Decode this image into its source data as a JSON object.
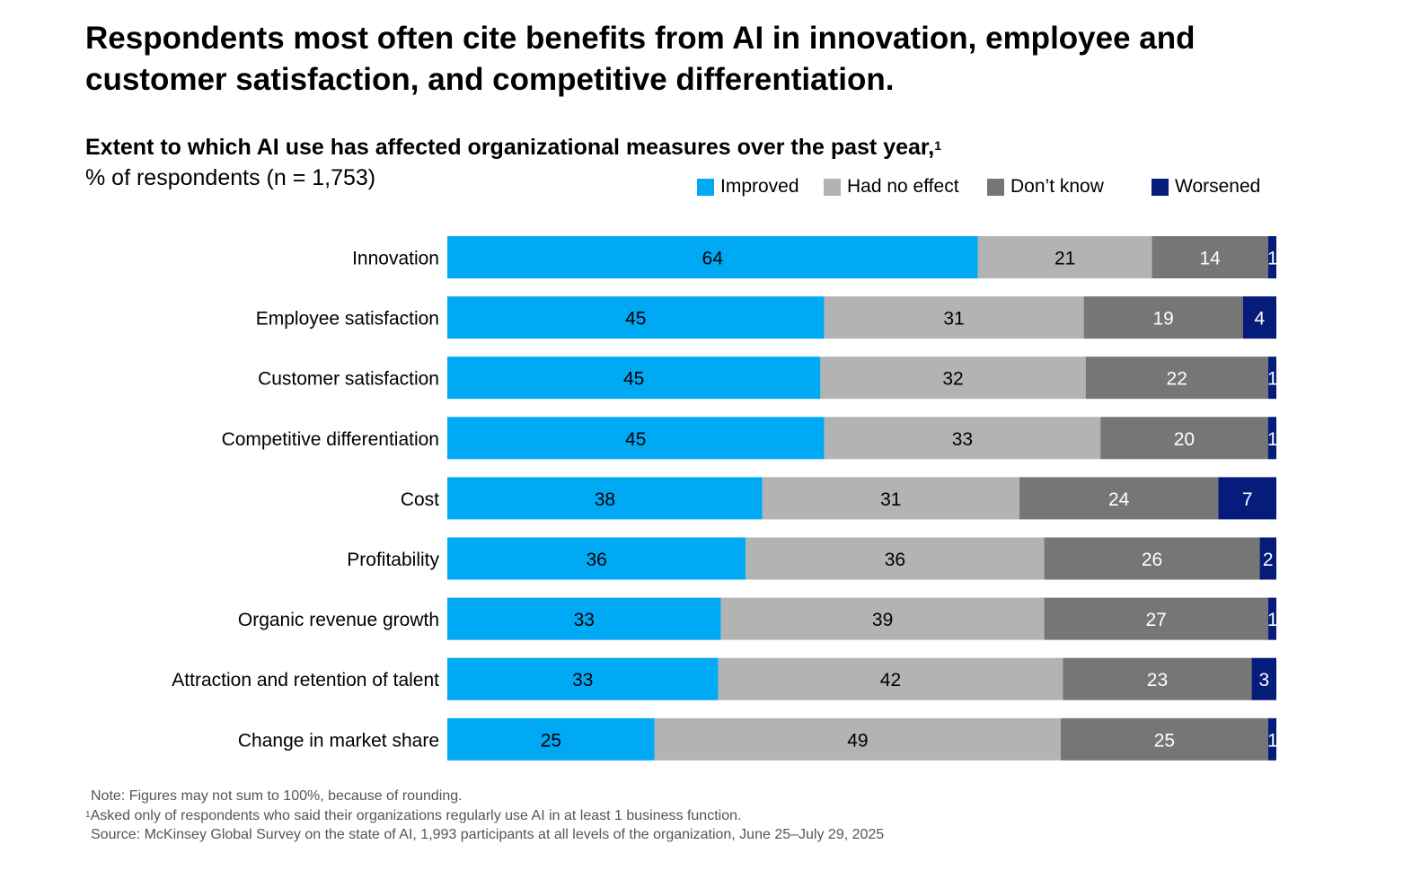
{
  "title": "Respondents most often cite benefits from AI in innovation, employee and customer satisfaction, and competitive differentiation.",
  "subtitle": "Extent to which AI use has affected organizational measures over the past year,",
  "subtitle_footnote_mark": "1",
  "units_label": "% of respondents (n = 1,753)",
  "chart_data": {
    "type": "bar",
    "orientation": "horizontal",
    "stacked": true,
    "categories": [
      "Innovation",
      "Employee satisfaction",
      "Customer satisfaction",
      "Competitive differentiation",
      "Cost",
      "Profitability",
      "Organic revenue growth",
      "Attraction and retention of talent",
      "Change in market share"
    ],
    "series": [
      {
        "name": "Improved",
        "color": "#00A9F4",
        "label_color": "#000000",
        "values": [
          64,
          45,
          45,
          45,
          38,
          36,
          33,
          33,
          25
        ]
      },
      {
        "name": "Had no effect",
        "color": "#B3B3B3",
        "label_color": "#000000",
        "values": [
          21,
          31,
          32,
          33,
          31,
          36,
          39,
          42,
          49
        ]
      },
      {
        "name": "Don’t know",
        "color": "#767676",
        "label_color": "#FFFFFF",
        "values": [
          14,
          19,
          22,
          20,
          24,
          26,
          27,
          23,
          25
        ]
      },
      {
        "name": "Worsened",
        "color": "#051C7A",
        "label_color": "#FFFFFF",
        "values": [
          1,
          4,
          1,
          1,
          7,
          2,
          1,
          3,
          1
        ]
      }
    ],
    "xlim": [
      0,
      100
    ],
    "legend_position": "top-right",
    "grid": false
  },
  "notes": {
    "note": "Note: Figures may not sum to 100%, because of rounding.",
    "footnote_mark": "1",
    "footnote": "Asked only of respondents who said their organizations regularly use AI in at least 1 business function.",
    "source": "Source: McKinsey Global Survey on the state of AI, 1,993 participants at all levels of the organization, June 25–July 29, 2025"
  }
}
